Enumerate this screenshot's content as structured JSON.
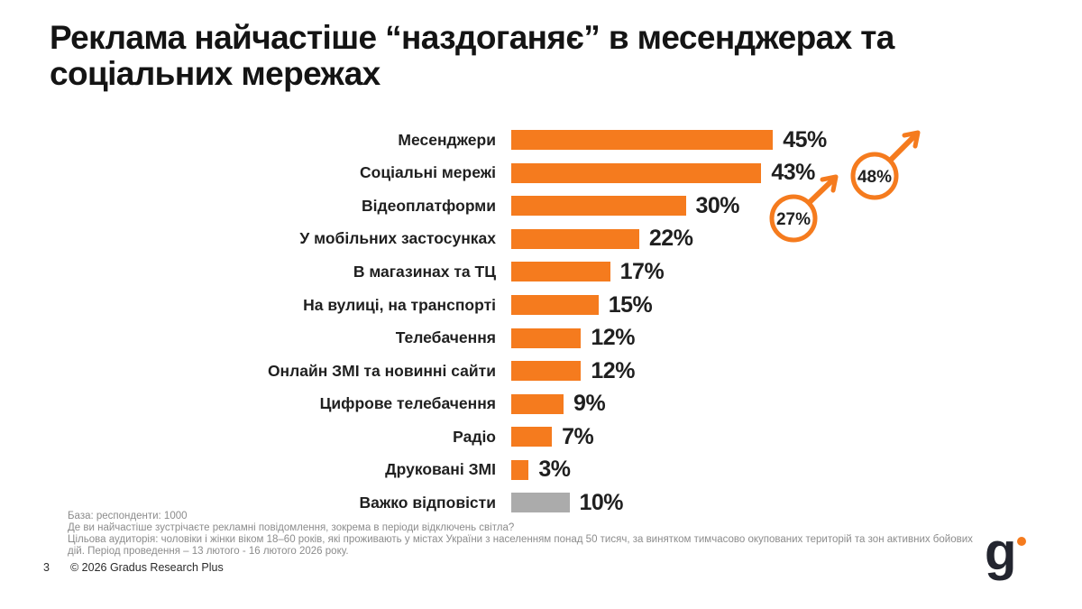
{
  "slide": {
    "title": "Реклама найчастіше “наздоганяє” в месенджерах та соціальних мережах",
    "page_number": "3",
    "copyright": "© 2026 Gradus Research Plus",
    "logo_text": "g"
  },
  "footnotes": {
    "base": "База: респонденти: 1000",
    "question": "Де ви найчастіше зустрічаєте рекламні повідомлення, зокрема в періоди відключень світла?",
    "audience": "Цільова аудиторія: чоловіки і жінки віком 18–60 років, які проживають у містах України з населенням понад 50 тисяч, за винятком тимчасово окупованих територій та зон активних бойових дій. Період проведення – 13 лютого - 16 лютого 2026 року."
  },
  "colors": {
    "orange": "#F57B1E",
    "gray": "#ABABAB",
    "text_dark": "#1F1F1F",
    "footnote_gray": "#8C8C8C",
    "logo_dark": "#23252F"
  },
  "chart_data": {
    "type": "bar",
    "orientation": "horizontal",
    "title": "Реклама найчастіше “наздоганяє” в месенджерах та соціальних мережах",
    "categories": [
      "Месенджери",
      "Соціальні мережі",
      "Відеоплатформи",
      "У мобільних застосунках",
      "В магазинах та ТЦ",
      "На вулиці, на транспорті",
      "Телебачення",
      "Онлайн ЗМІ та новинні сайти",
      "Цифрове телебачення",
      "Радіо",
      "Друковані ЗМІ",
      "Важко відповісти"
    ],
    "values": [
      45,
      43,
      30,
      22,
      17,
      15,
      12,
      12,
      9,
      7,
      3,
      10
    ],
    "value_labels": [
      "45%",
      "43%",
      "30%",
      "22%",
      "17%",
      "15%",
      "12%",
      "12%",
      "9%",
      "7%",
      "3%",
      "10%"
    ],
    "bar_colors": [
      "orange",
      "orange",
      "orange",
      "orange",
      "orange",
      "orange",
      "orange",
      "orange",
      "orange",
      "orange",
      "orange",
      "gray"
    ],
    "xlim": [
      0,
      50
    ],
    "grid": false,
    "legend": "none",
    "annotations": [
      {
        "label": "27%",
        "shape": "circle-with-up-right-arrow",
        "near_category": "Відеоплатформи"
      },
      {
        "label": "48%",
        "shape": "circle-with-up-right-arrow",
        "near_category": "Соціальні мережі"
      }
    ]
  }
}
